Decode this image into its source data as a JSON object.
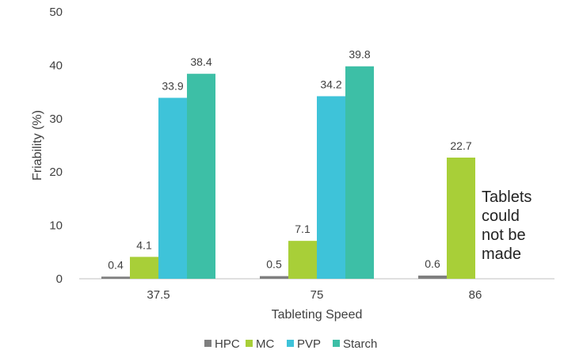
{
  "chart_data": {
    "type": "bar",
    "categories": [
      "37.5",
      "75",
      "86"
    ],
    "series": [
      {
        "name": "HPC",
        "values": [
          0.4,
          0.5,
          0.6
        ],
        "color": "#7f7f7f"
      },
      {
        "name": "MC",
        "values": [
          4.1,
          7.1,
          22.7
        ],
        "color": "#a8cf38"
      },
      {
        "name": "PVP",
        "values": [
          33.9,
          34.2,
          null
        ],
        "color": "#3ec3d9"
      },
      {
        "name": "Starch",
        "values": [
          38.4,
          39.8,
          null
        ],
        "color": "#3dbfa6"
      }
    ],
    "data_labels": [
      [
        "0.4",
        "0.5",
        "0.6"
      ],
      [
        "4.1",
        "7.1",
        "22.7"
      ],
      [
        "33.9",
        "34.2",
        ""
      ],
      [
        "38.4",
        "39.8",
        ""
      ]
    ],
    "xlabel": "Tableting Speed",
    "ylabel": "Friability (%)",
    "ylim": [
      0,
      50
    ],
    "yticks": [
      "0",
      "10",
      "20",
      "30",
      "40",
      "50"
    ],
    "grid": false,
    "legend_position": "bottom",
    "annotation": {
      "lines": [
        "Tablets",
        "could",
        "not be",
        "made"
      ]
    }
  }
}
